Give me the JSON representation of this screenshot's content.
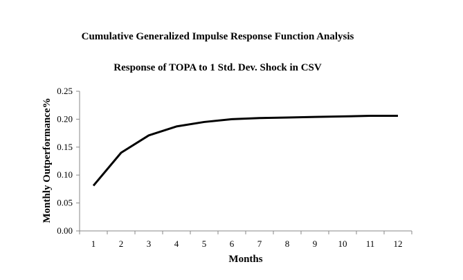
{
  "chart_data": {
    "type": "line",
    "title": "Cumulative Generalized Impulse Response Function Analysis",
    "subtitle": "Response of TOPA to 1 Std. Dev. Shock in CSV",
    "xlabel": "Months",
    "ylabel": "Monthly Outperformance%",
    "categories": [
      "1",
      "2",
      "3",
      "4",
      "5",
      "6",
      "7",
      "8",
      "9",
      "10",
      "11",
      "12"
    ],
    "series": [
      {
        "values": [
          0.081,
          0.14,
          0.171,
          0.187,
          0.195,
          0.2,
          0.202,
          0.203,
          0.204,
          0.205,
          0.206,
          0.206
        ],
        "color": "#000000"
      }
    ],
    "ylim": [
      0,
      0.25
    ],
    "yticks": [
      "0.00",
      "0.05",
      "0.10",
      "0.15",
      "0.20",
      "0.25"
    ],
    "grid": false,
    "legend": "none"
  }
}
